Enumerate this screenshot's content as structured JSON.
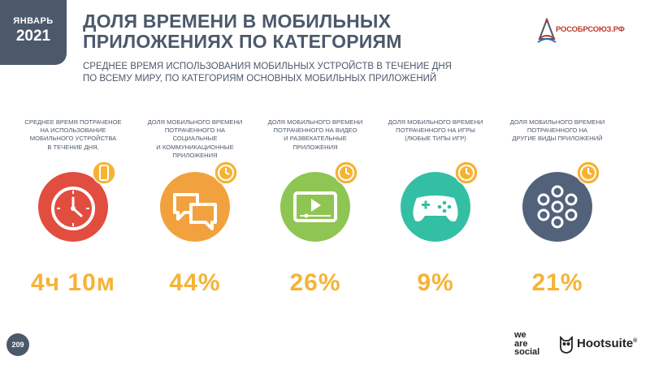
{
  "header": {
    "month": "ЯНВАРЬ",
    "year": "2021",
    "title_line1": "ДОЛЯ ВРЕМЕНИ В МОБИЛЬНЫХ",
    "title_line2": "ПРИЛОЖЕНИЯХ ПО КАТЕГОРИЯМ",
    "subtitle_line1": "СРЕДНЕЕ ВРЕМЯ ИСПОЛЬЗОВАНИЯ МОБИЛЬНЫХ УСТРОЙСТВ В ТЕЧЕНИЕ ДНЯ",
    "subtitle_line2": "ПО ВСЕМУ МИРУ, ПО КАТЕГОРИЯМ ОСНОВНЫХ МОБИЛЬНЫХ ПРИЛОЖЕНИЙ"
  },
  "brand": {
    "partner_logo_text": "РОСОБРСОЮЗ.РФ",
    "we_are_social_1": "we",
    "we_are_social_2": "are",
    "we_are_social_3": "social",
    "hootsuite": "Hootsuite",
    "hootsuite_mark": "®"
  },
  "colors": {
    "dark": "#4b596b",
    "accent": "#f5b335",
    "red": "#e14d3f",
    "orange": "#f2a13f",
    "green": "#8fc552",
    "teal": "#33bfa4",
    "slate": "#52627a"
  },
  "metrics": [
    {
      "desc_lines": [
        "СРЕДНЕЕ ВРЕМЯ ПОТРАЧЕНОЕ",
        "НА ИСПОЛЬЗОВАНИЕ",
        "МОБИЛЬНОГО УСТРОЙСТВА",
        "В ТЕЧЕНИЕ ДНЯ,"
      ],
      "value": "4ч 10м",
      "icon": "clock-phone-icon"
    },
    {
      "desc_lines": [
        "ДОЛЯ МОБИЛЬНОГО ВРЕМЕНИ",
        "ПОТРАЧЕННОГО НА СОЦИАЛЬНЫЕ",
        "И КОММУНИКАЦИОННЫЕ",
        "ПРИЛОЖЕНИЯ"
      ],
      "value": "44%",
      "icon": "chat-bubbles-icon"
    },
    {
      "desc_lines": [
        "ДОЛЯ МОБИЛЬНОГО ВРЕМЕНИ",
        "ПОТРАЧЕННОГО НА ВИДЕО",
        "И РАЗВЕКАТЕЛЬНЫЕ",
        "ПРИЛОЖЕНИЯ"
      ],
      "value": "26%",
      "icon": "video-player-icon"
    },
    {
      "desc_lines": [
        "ДОЛЯ МОБИЛЬНОГО ВРЕМЕНИ",
        "ПОТРАЧЕННОГО НА ИГРЫ",
        "(ЛЮБЫЕ ТИПЫ ИГР)"
      ],
      "value": "9%",
      "icon": "gamepad-icon"
    },
    {
      "desc_lines": [
        "ДОЛЯ МОБИЛЬНОГО ВРЕМЕНИ",
        "ПОТРАЧЕННОГО НА",
        "ДРУГИЕ ВИДЫ ПРИЛОЖЕНИЙ"
      ],
      "value": "21%",
      "icon": "app-grid-icon"
    }
  ],
  "page_number": "209"
}
